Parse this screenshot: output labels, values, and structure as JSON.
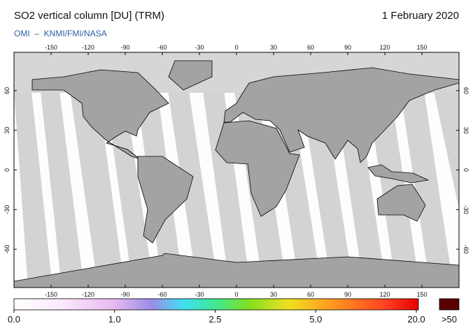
{
  "header": {
    "title": "SO2 vertical column [DU] (TRM)",
    "date": "1 February 2020",
    "source": "OMI  –  KNMI/FMI/NASA"
  },
  "map": {
    "xlim": [
      -180,
      180
    ],
    "ylim": [
      -89,
      89
    ],
    "xticks": [
      -150,
      -120,
      -90,
      -60,
      -30,
      0,
      30,
      60,
      90,
      120,
      150
    ],
    "yticks": [
      -60,
      -30,
      0,
      30,
      60
    ]
  },
  "colorbar": {
    "ticks": [
      {
        "value": 0,
        "label": "0.0"
      },
      {
        "value": 1,
        "label": "1.0"
      },
      {
        "value": 2.5,
        "label": "2.5"
      },
      {
        "value": 5,
        "label": "5.0"
      },
      {
        "value": 20,
        "label": "20.0"
      }
    ],
    "over_label": ">50"
  }
}
